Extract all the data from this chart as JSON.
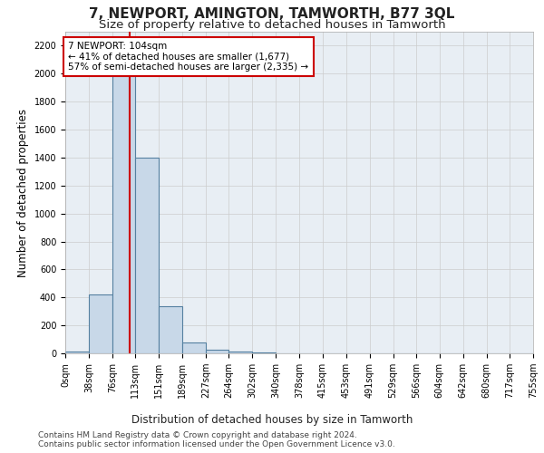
{
  "title": "7, NEWPORT, AMINGTON, TAMWORTH, B77 3QL",
  "subtitle": "Size of property relative to detached houses in Tamworth",
  "xlabel": "Distribution of detached houses by size in Tamworth",
  "ylabel": "Number of detached properties",
  "footnote1": "Contains HM Land Registry data © Crown copyright and database right 2024.",
  "footnote2": "Contains public sector information licensed under the Open Government Licence v3.0.",
  "annotation_line1": "7 NEWPORT: 104sqm",
  "annotation_line2": "← 41% of detached houses are smaller (1,677)",
  "annotation_line3": "57% of semi-detached houses are larger (2,335) →",
  "bar_edges": [
    0,
    38,
    76,
    113,
    151,
    189,
    227,
    264,
    302,
    340,
    378,
    415,
    453,
    491,
    529,
    566,
    604,
    642,
    680,
    717,
    755
  ],
  "bar_values": [
    10,
    420,
    2050,
    1400,
    340,
    80,
    25,
    10,
    5,
    0,
    0,
    0,
    0,
    0,
    0,
    0,
    0,
    0,
    0,
    0
  ],
  "bar_color": "#c8d8e8",
  "bar_edge_color": "#5580a0",
  "bar_linewidth": 0.8,
  "grid_color": "#cccccc",
  "red_line_x": 104,
  "red_line_color": "#cc0000",
  "annotation_box_color": "#cc0000",
  "ylim": [
    0,
    2300
  ],
  "yticks": [
    0,
    200,
    400,
    600,
    800,
    1000,
    1200,
    1400,
    1600,
    1800,
    2000,
    2200
  ],
  "background_color": "#ffffff",
  "plot_bg_color": "#e8eef4",
  "title_fontsize": 11,
  "subtitle_fontsize": 9.5,
  "axis_label_fontsize": 8.5,
  "tick_fontsize": 7,
  "annotation_fontsize": 7.5,
  "footnote_fontsize": 6.5
}
